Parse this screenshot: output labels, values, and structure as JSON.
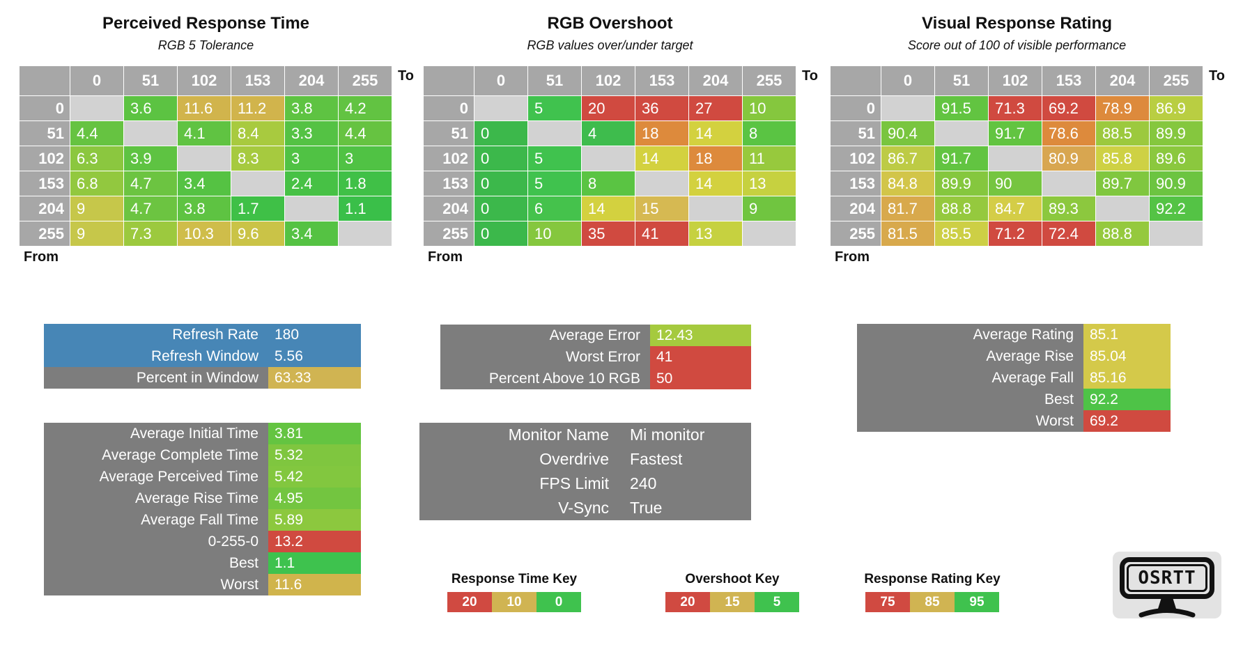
{
  "axis": {
    "to": "To",
    "from": "From",
    "levels": [
      "0",
      "51",
      "102",
      "153",
      "204",
      "255"
    ]
  },
  "chart_data": [
    {
      "type": "heatmap",
      "id": "perceived_response_time",
      "title": "Perceived Response Time",
      "subtitle": "RGB 5 Tolerance",
      "x_axis": "To",
      "y_axis": "From",
      "categories": [
        "0",
        "51",
        "102",
        "153",
        "204",
        "255"
      ],
      "cells": [
        [
          null,
          {
            "v": "3.6",
            "c": "#5cc342"
          },
          {
            "v": "11.6",
            "c": "#d1b44c"
          },
          {
            "v": "11.2",
            "c": "#d1b44c"
          },
          {
            "v": "3.8",
            "c": "#5ec342"
          },
          {
            "v": "4.2",
            "c": "#62c342"
          }
        ],
        [
          {
            "v": "4.4",
            "c": "#66c341"
          },
          null,
          {
            "v": "4.1",
            "c": "#60c342"
          },
          {
            "v": "8.4",
            "c": "#a8ca3f"
          },
          {
            "v": "3.3",
            "c": "#54c244"
          },
          {
            "v": "4.4",
            "c": "#66c341"
          }
        ],
        [
          {
            "v": "6.3",
            "c": "#8bc73f"
          },
          {
            "v": "3.9",
            "c": "#5ec342"
          },
          null,
          {
            "v": "8.3",
            "c": "#a6ca3f"
          },
          {
            "v": "3",
            "c": "#50c244"
          },
          {
            "v": "3",
            "c": "#50c244"
          }
        ],
        [
          {
            "v": "6.8",
            "c": "#92c83f"
          },
          {
            "v": "4.7",
            "c": "#6cc441"
          },
          {
            "v": "3.4",
            "c": "#55c243"
          },
          null,
          {
            "v": "2.4",
            "c": "#47c145"
          },
          {
            "v": "1.8",
            "c": "#40c047"
          }
        ],
        [
          {
            "v": "9",
            "c": "#c6c74a"
          },
          {
            "v": "4.7",
            "c": "#6cc441"
          },
          {
            "v": "3.8",
            "c": "#5ec342"
          },
          {
            "v": "1.7",
            "c": "#3fc047"
          },
          null,
          {
            "v": "1.1",
            "c": "#3abf49"
          }
        ],
        [
          {
            "v": "9",
            "c": "#c6c74a"
          },
          {
            "v": "7.3",
            "c": "#9cc93e"
          },
          {
            "v": "10.3",
            "c": "#cfbd4a"
          },
          {
            "v": "9.6",
            "c": "#cac347"
          },
          {
            "v": "3.4",
            "c": "#55c243"
          },
          null
        ]
      ]
    },
    {
      "type": "heatmap",
      "id": "rgb_overshoot",
      "title": "RGB Overshoot",
      "subtitle": "RGB values over/under target",
      "x_axis": "To",
      "y_axis": "From",
      "categories": [
        "0",
        "51",
        "102",
        "153",
        "204",
        "255"
      ],
      "cells": [
        [
          null,
          {
            "v": "5",
            "c": "#40c24e"
          },
          {
            "v": "20",
            "c": "#d04a40"
          },
          {
            "v": "36",
            "c": "#d04a40"
          },
          {
            "v": "27",
            "c": "#d04a40"
          },
          {
            "v": "10",
            "c": "#85c73e"
          }
        ],
        [
          {
            "v": "0",
            "c": "#3cb84b"
          },
          null,
          {
            "v": "4",
            "c": "#3ebc4d"
          },
          {
            "v": "18",
            "c": "#dd8a3c"
          },
          {
            "v": "14",
            "c": "#d3d13f"
          },
          {
            "v": "8",
            "c": "#5ac443"
          }
        ],
        [
          {
            "v": "0",
            "c": "#3cb84b"
          },
          {
            "v": "5",
            "c": "#40c24e"
          },
          null,
          {
            "v": "14",
            "c": "#d3d13f"
          },
          {
            "v": "18",
            "c": "#dd8a3c"
          },
          {
            "v": "11",
            "c": "#97c93d"
          }
        ],
        [
          {
            "v": "0",
            "c": "#3cb84b"
          },
          {
            "v": "5",
            "c": "#40c24e"
          },
          {
            "v": "8",
            "c": "#5ac443"
          },
          null,
          {
            "v": "14",
            "c": "#d3d13f"
          },
          {
            "v": "13",
            "c": "#c6d140"
          }
        ],
        [
          {
            "v": "0",
            "c": "#3cb84b"
          },
          {
            "v": "6",
            "c": "#45c24c"
          },
          {
            "v": "14",
            "c": "#d3d13f"
          },
          {
            "v": "15",
            "c": "#d6b952"
          },
          null,
          {
            "v": "9",
            "c": "#70c540"
          }
        ],
        [
          {
            "v": "0",
            "c": "#3cb84b"
          },
          {
            "v": "10",
            "c": "#85c73e"
          },
          {
            "v": "35",
            "c": "#d04a40"
          },
          {
            "v": "41",
            "c": "#d04a40"
          },
          {
            "v": "13",
            "c": "#c6d140"
          },
          null
        ]
      ]
    },
    {
      "type": "heatmap",
      "id": "visual_response_rating",
      "title": "Visual Response Rating",
      "subtitle": "Score out of 100 of visible performance",
      "x_axis": "To",
      "y_axis": "From",
      "categories": [
        "0",
        "51",
        "102",
        "153",
        "204",
        "255"
      ],
      "cells": [
        [
          null,
          {
            "v": "91.5",
            "c": "#62c441"
          },
          {
            "v": "71.3",
            "c": "#d04a40"
          },
          {
            "v": "69.2",
            "c": "#d04a40"
          },
          {
            "v": "78.9",
            "c": "#dd8a3c"
          },
          {
            "v": "86.9",
            "c": "#b9ce42"
          }
        ],
        [
          {
            "v": "90.4",
            "c": "#79c53f"
          },
          null,
          {
            "v": "91.7",
            "c": "#62c441"
          },
          {
            "v": "78.6",
            "c": "#dd8a3c"
          },
          {
            "v": "88.5",
            "c": "#9cc93e"
          },
          {
            "v": "89.9",
            "c": "#85c73e"
          }
        ],
        [
          {
            "v": "86.7",
            "c": "#bdcb45"
          },
          {
            "v": "91.7",
            "c": "#62c441"
          },
          null,
          {
            "v": "80.9",
            "c": "#d8a650"
          },
          {
            "v": "85.8",
            "c": "#ced144"
          },
          {
            "v": "89.6",
            "c": "#8bc83e"
          }
        ],
        [
          {
            "v": "84.8",
            "c": "#d2c549"
          },
          {
            "v": "89.9",
            "c": "#85c73e"
          },
          {
            "v": "90",
            "c": "#76c540"
          },
          null,
          {
            "v": "89.7",
            "c": "#80c73f"
          },
          {
            "v": "90.9",
            "c": "#6cc441"
          }
        ],
        [
          {
            "v": "81.7",
            "c": "#d8a94c"
          },
          {
            "v": "88.8",
            "c": "#95c93e"
          },
          {
            "v": "84.7",
            "c": "#d4cd47"
          },
          {
            "v": "89.3",
            "c": "#8cc83e"
          },
          null,
          {
            "v": "92.2",
            "c": "#54c345"
          }
        ],
        [
          {
            "v": "81.5",
            "c": "#d8a94c"
          },
          {
            "v": "85.5",
            "c": "#cdcf45"
          },
          {
            "v": "71.2",
            "c": "#d04a40"
          },
          {
            "v": "72.4",
            "c": "#d04a40"
          },
          {
            "v": "88.8",
            "c": "#95c93e"
          },
          null
        ]
      ]
    }
  ],
  "panels": {
    "refresh": {
      "rows": [
        {
          "label": "Refresh Rate",
          "value": "180",
          "label_bg": "#4786b6",
          "value_bg": "#4786b6"
        },
        {
          "label": "Refresh Window",
          "value": "5.56",
          "label_bg": "#4786b6",
          "value_bg": "#4786b6"
        },
        {
          "label": "Percent in Window",
          "value": "63.33",
          "label_bg": "#7d7d7d",
          "value_bg": "#d0b452"
        }
      ]
    },
    "times": {
      "rows": [
        {
          "label": "Average Initial Time",
          "value": "3.81",
          "label_bg": "#7d7d7d",
          "value_bg": "#64c441"
        },
        {
          "label": "Average Complete Time",
          "value": "5.32",
          "label_bg": "#7d7d7d",
          "value_bg": "#7fc63f"
        },
        {
          "label": "Average Perceived Time",
          "value": "5.42",
          "label_bg": "#7d7d7d",
          "value_bg": "#82c73f"
        },
        {
          "label": "Average Rise Time",
          "value": "4.95",
          "label_bg": "#7d7d7d",
          "value_bg": "#73c540"
        },
        {
          "label": "Average Fall Time",
          "value": "5.89",
          "label_bg": "#7d7d7d",
          "value_bg": "#8cc83e"
        },
        {
          "label": "0-255-0",
          "value": "13.2",
          "label_bg": "#7d7d7d",
          "value_bg": "#d04a40"
        },
        {
          "label": "Best",
          "value": "1.1",
          "label_bg": "#7d7d7d",
          "value_bg": "#3ec24e"
        },
        {
          "label": "Worst",
          "value": "11.6",
          "label_bg": "#7d7d7d",
          "value_bg": "#d0b44c"
        }
      ]
    },
    "error": {
      "rows": [
        {
          "label": "Average Error",
          "value": "12.43",
          "label_bg": "#7d7d7d",
          "value_bg": "#a5ca3e"
        },
        {
          "label": "Worst Error",
          "value": "41",
          "label_bg": "#7d7d7d",
          "value_bg": "#d04a40"
        },
        {
          "label": "Percent Above 10 RGB",
          "value": "50",
          "label_bg": "#7d7d7d",
          "value_bg": "#d04a40"
        }
      ]
    },
    "monitor": {
      "rows": [
        {
          "label": "Monitor Name",
          "value": "Mi monitor"
        },
        {
          "label": "Overdrive",
          "value": "Fastest"
        },
        {
          "label": "FPS Limit",
          "value": "240"
        },
        {
          "label": "V-Sync",
          "value": "True"
        }
      ]
    },
    "rating": {
      "rows": [
        {
          "label": "Average Rating",
          "value": "85.1",
          "label_bg": "#7d7d7d",
          "value_bg": "#d4c94a"
        },
        {
          "label": "Average Rise",
          "value": "85.04",
          "label_bg": "#7d7d7d",
          "value_bg": "#d4c94a"
        },
        {
          "label": "Average Fall",
          "value": "85.16",
          "label_bg": "#7d7d7d",
          "value_bg": "#d4c94a"
        },
        {
          "label": "Best",
          "value": "92.2",
          "label_bg": "#7d7d7d",
          "value_bg": "#4ec347"
        },
        {
          "label": "Worst",
          "value": "69.2",
          "label_bg": "#7d7d7d",
          "value_bg": "#d04a40"
        }
      ]
    }
  },
  "keys": [
    {
      "title": "Response Time Key",
      "stops": [
        {
          "v": "20",
          "c": "#d04a41"
        },
        {
          "v": "10",
          "c": "#d0b452"
        },
        {
          "v": "0",
          "c": "#3fc24e"
        }
      ]
    },
    {
      "title": "Overshoot Key",
      "stops": [
        {
          "v": "20",
          "c": "#d04a41"
        },
        {
          "v": "15",
          "c": "#d0b452"
        },
        {
          "v": "5",
          "c": "#3fc24e"
        }
      ]
    },
    {
      "title": "Response Rating Key",
      "stops": [
        {
          "v": "75",
          "c": "#d04a41"
        },
        {
          "v": "85",
          "c": "#d0b452"
        },
        {
          "v": "95",
          "c": "#3fc24e"
        }
      ]
    }
  ],
  "logo": {
    "text": "OSRTT"
  },
  "palette": {
    "header_gray": "#a7a7a7",
    "diagonal_gray": "#d2d2d2",
    "panel_gray": "#7d7d7d",
    "blue": "#4786b6",
    "red": "#d04a41",
    "amber": "#d0b452",
    "green": "#3fc24e"
  }
}
